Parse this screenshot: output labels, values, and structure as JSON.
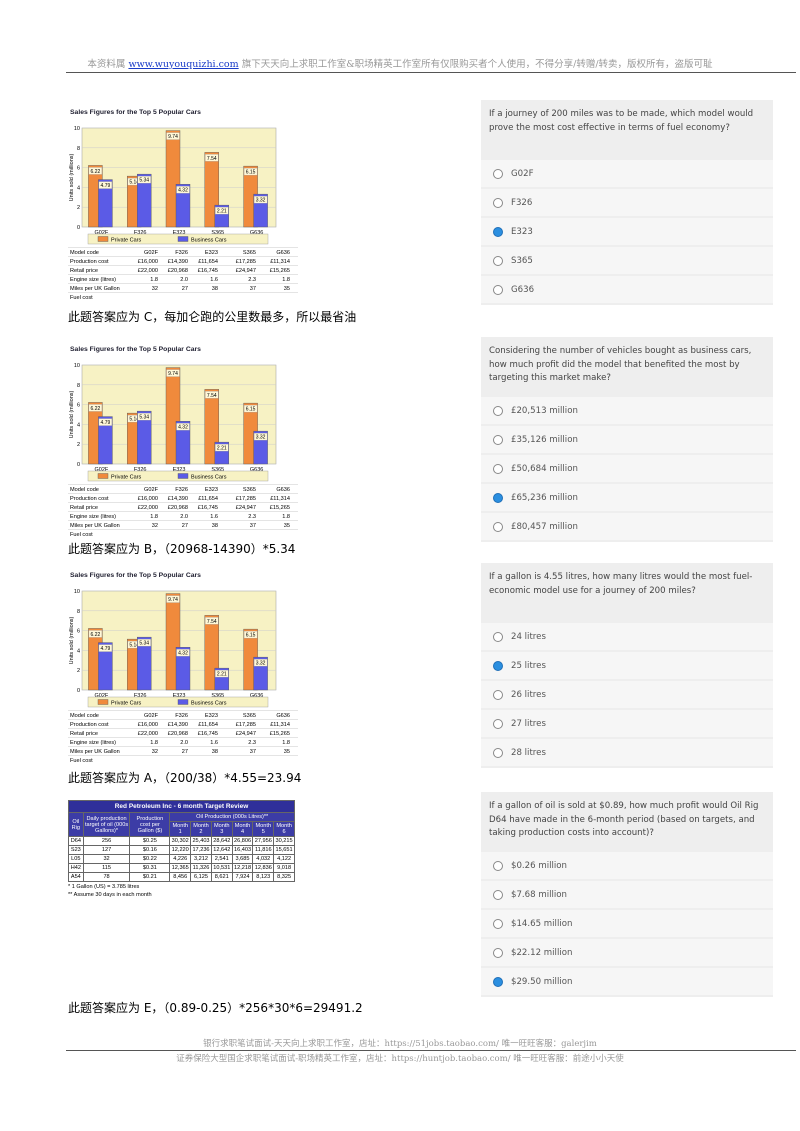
{
  "header": {
    "prefix": "本资料属 ",
    "link": "www.wuyouquizhi.com",
    "suffix": " 旗下天天向上求职工作室&职场精英工作室所有仅限购买者个人使用，不得分享/转赠/转卖，版权所有，盗版可耻"
  },
  "sales_exhibit": {
    "chart": {
      "type": "bar",
      "title": "Sales Figures for the Top 5 Popular Cars",
      "y_label": "Units sold (millions)",
      "categories": [
        "G02F",
        "F326",
        "E323",
        "S365",
        "G636"
      ],
      "series": [
        {
          "name": "Private Cars",
          "color": "#f08a3c",
          "values": [
            6.22,
            5.14,
            9.74,
            7.54,
            6.15
          ]
        },
        {
          "name": "Business Cars",
          "color": "#5b5be6",
          "values": [
            4.79,
            5.34,
            4.32,
            2.21,
            3.32
          ]
        }
      ],
      "ylim": [
        0,
        10
      ],
      "yticks": [
        0,
        2,
        4,
        6,
        8,
        10
      ],
      "grid": true
    },
    "table": {
      "rows": [
        [
          "Model code",
          "G02F",
          "F326",
          "E323",
          "S365",
          "G636"
        ],
        [
          "Production cost",
          "£16,000",
          "£14,390",
          "£11,654",
          "£17,285",
          "£11,314"
        ],
        [
          "Retail price",
          "£22,000",
          "£20,968",
          "£16,745",
          "£24,947",
          "£15,265"
        ],
        [
          "Engine size (litres)",
          "1.8",
          "2.0",
          "1.6",
          "2.3",
          "1.8"
        ],
        [
          "Miles per UK Gallon",
          "32",
          "27",
          "38",
          "37",
          "35"
        ],
        [
          "Fuel cost"
        ]
      ]
    }
  },
  "oil_exhibit": {
    "title": "Red Petroleum Inc - 6 month Target Review",
    "col_headers": [
      "Oil Rig",
      "Daily production target of oil (000s Gallons)*",
      "Production cost per Gallon ($)"
    ],
    "group_header": "Oil Production (000s Litres)**",
    "months": [
      "Month 1",
      "Month 2",
      "Month 3",
      "Month 4",
      "Month 5",
      "Month 6"
    ],
    "rows": [
      [
        "D64",
        "256",
        "$0.25",
        "30,302",
        "25,403",
        "28,642",
        "26,806",
        "27,956",
        "30,215"
      ],
      [
        "S23",
        "127",
        "$0.16",
        "12,220",
        "17,236",
        "12,642",
        "16,403",
        "11,816",
        "15,651"
      ],
      [
        "L05",
        "32",
        "$0.22",
        "4,226",
        "3,212",
        "2,541",
        "3,685",
        "4,032",
        "4,122"
      ],
      [
        "H42",
        "115",
        "$0.31",
        "12,365",
        "11,326",
        "10,531",
        "12,218",
        "12,836",
        "9,018"
      ],
      [
        "A54",
        "78",
        "$0.21",
        "8,456",
        "6,125",
        "8,621",
        "7,924",
        "8,123",
        "8,325"
      ]
    ],
    "notes": [
      "* 1 Gallon (US) = 3.785 litres",
      "** Assume 30 days in each month"
    ]
  },
  "questions": [
    {
      "question": "If a journey of 200 miles was to be made, which model would prove the most cost effective in terms of fuel economy?",
      "options": [
        "G02F",
        "F326",
        "E323",
        "S365",
        "G636"
      ],
      "selected": 2,
      "answer": "此题答案应为 C，每加仑跑的公里数最多，所以最省油"
    },
    {
      "question": "Considering the number of vehicles bought as business cars, how much profit did the model that benefited the most by targeting this market make?",
      "options": [
        "£20,513 million",
        "£35,126 million",
        "£50,684 million",
        "£65,236 million",
        "£80,457 million"
      ],
      "selected": 3,
      "answer": "此题答案应为 B，（20968-14390）*5.34"
    },
    {
      "question": "If a gallon is 4.55 litres, how many litres would the most fuel-economic model use for a journey of 200 miles?",
      "options": [
        "24 litres",
        "25 litres",
        "26 litres",
        "27 litres",
        "28 litres"
      ],
      "selected": 1,
      "answer": "此题答案应为 A，（200/38）*4.55=23.94"
    },
    {
      "question": "If a gallon of oil is sold at $0.89, how much profit would Oil Rig D64 have made in the 6-month period (based on targets, and taking production costs into account)?",
      "options": [
        "$0.26 million",
        "$7.68 million",
        "$14.65 million",
        "$22.12 million",
        "$29.50 million"
      ],
      "selected": 4,
      "answer": "此题答案应为 E，（0.89-0.25）*256*30*6=29491.2"
    }
  ],
  "footer": {
    "line1": "银行求职笔试面试-天天向上求职工作室，店址：https://51jobs.taobao.com/  唯一旺旺客服：galerjim",
    "line2": "证券保险大型国企求职笔试面试-职场精英工作室，店址：https://huntjob.taobao.com/  唯一旺旺客服：前途小小天使"
  }
}
